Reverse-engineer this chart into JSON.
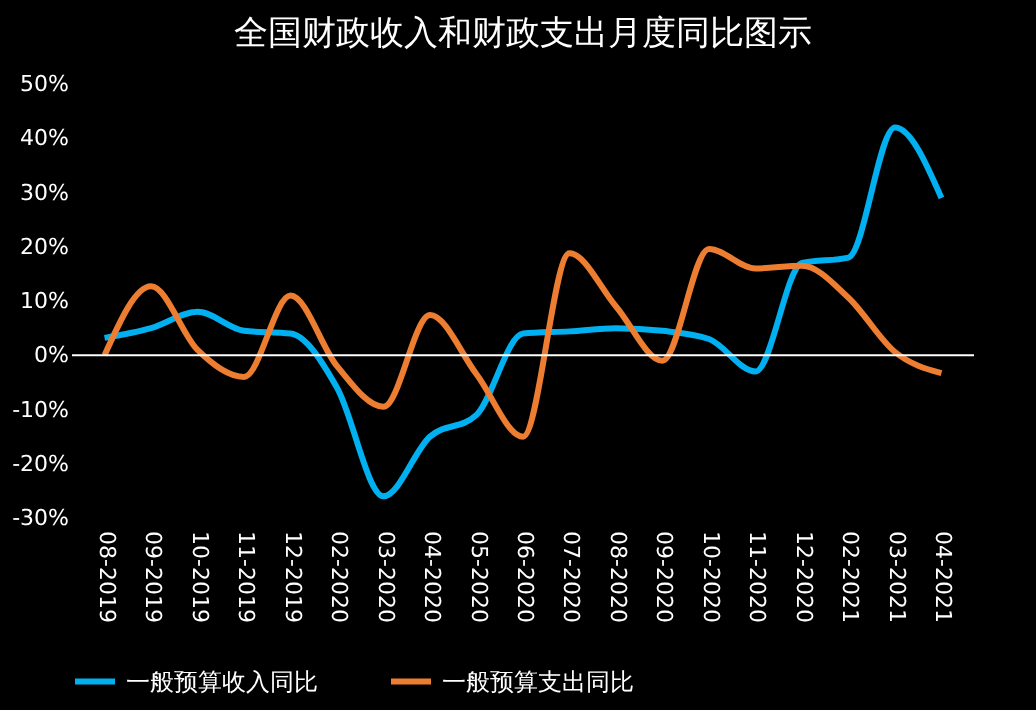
{
  "chart_data": {
    "type": "line",
    "title": "全国财政收入和财政支出月度同比图示",
    "categories": [
      "08-2019",
      "09-2019",
      "10-2019",
      "11-2019",
      "12-2019",
      "02-2020",
      "03-2020",
      "04-2020",
      "05-2020",
      "06-2020",
      "07-2020",
      "08-2020",
      "09-2020",
      "10-2020",
      "11-2020",
      "12-2020",
      "02-2021",
      "03-2021",
      "04-2021"
    ],
    "series": [
      {
        "name": "一般预算收入同比",
        "color": "#00b0f0",
        "values": [
          3.2,
          5,
          8,
          4.5,
          4,
          -6,
          -26,
          -15,
          -11,
          4,
          4.4,
          5,
          4.5,
          3,
          -3,
          17,
          18,
          42,
          29
        ]
      },
      {
        "name": "一般预算支出同比",
        "color": "#ed7d31",
        "values": [
          0,
          12.7,
          1,
          -4,
          11,
          -2,
          -9.5,
          7.4,
          -3.5,
          -15,
          18.8,
          9,
          -1,
          19.6,
          16,
          16.5,
          10.6,
          0.6,
          -3.3
        ]
      }
    ],
    "ylim": [
      -30,
      50
    ],
    "yticks": [
      {
        "value": -30,
        "label": "-30%"
      },
      {
        "value": -20,
        "label": "-20%"
      },
      {
        "value": -10,
        "label": "-10%"
      },
      {
        "value": 0,
        "label": "0%"
      },
      {
        "value": 10,
        "label": "10%"
      },
      {
        "value": 20,
        "label": "20%"
      },
      {
        "value": 30,
        "label": "30%"
      },
      {
        "value": 40,
        "label": "40%"
      },
      {
        "value": 50,
        "label": "50%"
      }
    ],
    "ref_lines": [
      {
        "axis": "y",
        "value": 0,
        "color": "#ffffff"
      }
    ],
    "grid": false,
    "legend": "bottom",
    "marker": "none",
    "line_style": "solid"
  }
}
